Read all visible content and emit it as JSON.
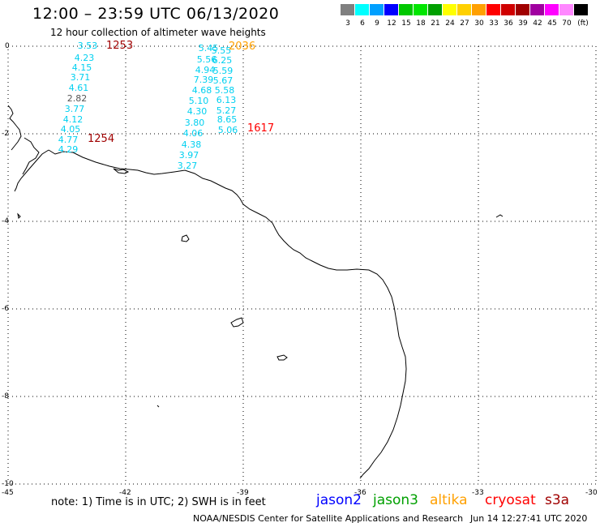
{
  "header": {
    "title": "12:00 – 23:59 UTC 06/13/2020",
    "subtitle": "12 hour collection of altimeter wave heights"
  },
  "legend": {
    "colors": [
      "#808080",
      "#00ffff",
      "#00a0ff",
      "#0000ff",
      "#00c800",
      "#00e600",
      "#00a000",
      "#ffff00",
      "#ffd000",
      "#ffa000",
      "#ff0000",
      "#d00000",
      "#a00000",
      "#a000a0",
      "#ff00ff",
      "#ff88ff",
      "#000000"
    ],
    "labels": [
      "3",
      "6",
      "9",
      "12",
      "15",
      "18",
      "21",
      "24",
      "27",
      "30",
      "33",
      "36",
      "39",
      "42",
      "45",
      "70",
      "(ft)"
    ]
  },
  "axes": {
    "lat_labels": [
      "0",
      "-2",
      "-4",
      "-6",
      "-8",
      "-10"
    ],
    "lon_labels": [
      "-45",
      "-42",
      "-39",
      "-36",
      "-33",
      "-30"
    ]
  },
  "passes": [
    {
      "time": "1253",
      "color": "#a00000"
    },
    {
      "time": "2036",
      "color": "#ffa000"
    },
    {
      "time": "1254",
      "color": "#a00000"
    },
    {
      "time": "1617",
      "color": "#ff0000"
    }
  ],
  "track_west": {
    "color": "#00d0f0",
    "values": [
      "3.53",
      "4.23",
      "4.15",
      "3.71",
      "4.61",
      "2.82",
      "3.77",
      "4.12",
      "4.05",
      "4.77",
      "4.29"
    ]
  },
  "track_east": {
    "color": "#00d0f0",
    "values": [
      "5.45",
      "5.55",
      "5.56",
      "6.25",
      "4.94",
      "5.59",
      "7.39",
      "5.67",
      "4.68",
      "5.58",
      "5.10",
      "6.13",
      "4.30",
      "5.27",
      "3.80",
      "8.65",
      "4.06",
      "5.06",
      "4.38",
      "3.97",
      "3.27"
    ]
  },
  "footer": {
    "note": "note:  1) Time is in UTC; 2) SWH is in feet",
    "satellites": [
      {
        "name": "jason2",
        "color": "#0000ff"
      },
      {
        "name": "jason3",
        "color": "#00a000"
      },
      {
        "name": "altika",
        "color": "#ffa000"
      },
      {
        "name": "cryosat",
        "color": "#ff0000"
      },
      {
        "name": "s3a",
        "color": "#a00000"
      }
    ],
    "credit": "NOAA/NESDIS Center for Satellite Applications and Research",
    "timestamp": "Jun 14 12:27:41 UTC 2020"
  }
}
